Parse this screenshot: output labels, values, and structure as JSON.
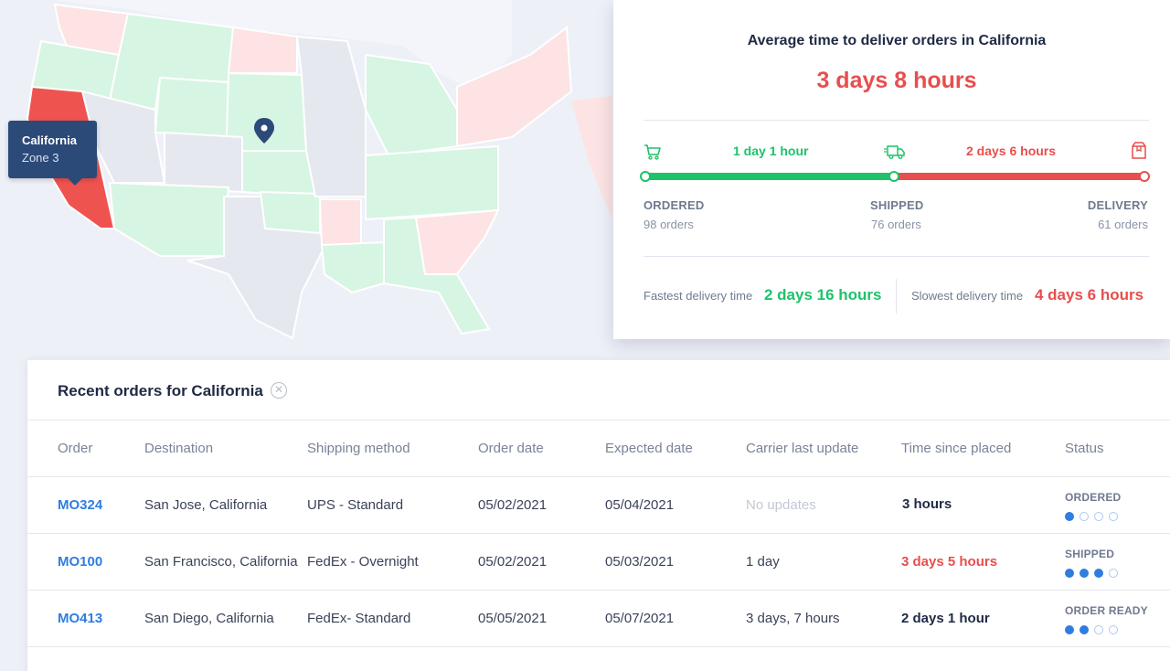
{
  "map": {
    "selected_state": "California",
    "tooltip": {
      "name": "California",
      "zone": "Zone 3"
    },
    "colors": {
      "green": "#d6f5e2",
      "red_light": "#fde3e3",
      "red_selected": "#ef5350",
      "neutral": "#e6e8f0",
      "pin": "#2c4a78"
    },
    "icons": {
      "pin": "map-pin-icon"
    }
  },
  "stats": {
    "title": "Average time to deliver orders in California",
    "average": "3 days 8 hours",
    "segments": [
      {
        "label": "1 day 1 hour",
        "color": "#1ec26a"
      },
      {
        "label": "2 days 6 hours",
        "color": "#e84e4e"
      }
    ],
    "progress_fraction_shipped": 0.5,
    "stages": [
      {
        "name": "ORDERED",
        "count": "98 orders",
        "icon": "cart-icon"
      },
      {
        "name": "SHIPPED",
        "count": "76 orders",
        "icon": "truck-icon"
      },
      {
        "name": "DELIVERY",
        "count": "61 orders",
        "icon": "package-icon"
      }
    ],
    "fastest": {
      "label": "Fastest delivery time",
      "value": "2 days 16 hours"
    },
    "slowest": {
      "label": "Slowest delivery time",
      "value": "4 days 6 hours"
    }
  },
  "orders": {
    "title": "Recent orders for California",
    "close_icon": "close-circle-icon",
    "columns": [
      "Order",
      "Destination",
      "Shipping method",
      "Order date",
      "Expected date",
      "Carrier last update",
      "Time since placed",
      "Status"
    ],
    "rows": [
      {
        "order": "MO324",
        "destination": "San Jose, California",
        "shipping": "UPS - Standard",
        "order_date": "05/02/2021",
        "expected": "05/04/2021",
        "carrier": "No updates",
        "time_since": "3 hours",
        "status": "ORDERED",
        "progress_steps_done": 1,
        "progress_steps_total": 4
      },
      {
        "order": "MO100",
        "destination": "San Francisco, California",
        "shipping": "FedEx - Overnight",
        "order_date": "05/02/2021",
        "expected": "05/03/2021",
        "carrier": "1 day",
        "time_since": "3 days 5 hours",
        "status": "SHIPPED",
        "progress_steps_done": 3,
        "progress_steps_total": 4
      },
      {
        "order": "MO413",
        "destination": "San Diego, California",
        "shipping": "FedEx- Standard",
        "order_date": "05/05/2021",
        "expected": "05/07/2021",
        "carrier": "3 days, 7 hours",
        "time_since": "2 days 1 hour",
        "status": "ORDER READY",
        "progress_steps_done": 2,
        "progress_steps_total": 4
      }
    ]
  }
}
